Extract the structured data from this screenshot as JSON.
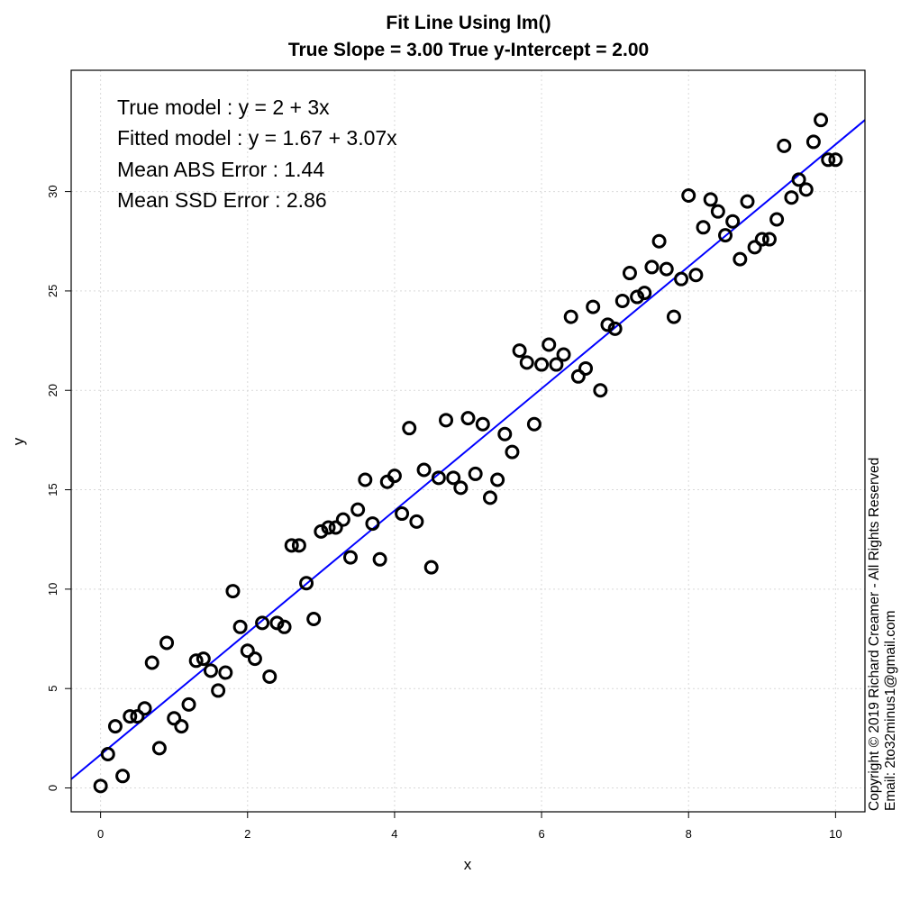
{
  "chart_data": {
    "type": "scatter",
    "title": "Fit Line Using lm()",
    "subtitle": "True Slope = 3.00 True y-Intercept = 2.00",
    "xlabel": "x",
    "ylabel": "y",
    "xlim": [
      -0.4,
      10.4
    ],
    "ylim": [
      -1.2,
      36.1
    ],
    "x_ticks": [
      0,
      2,
      4,
      6,
      8,
      10
    ],
    "y_ticks": [
      0,
      5,
      10,
      15,
      20,
      25,
      30
    ],
    "grid": true,
    "fit_line": {
      "intercept": 1.67,
      "slope": 3.07,
      "color": "#0000ff"
    },
    "annotations": [
      "True model : y = 2 + 3x",
      "Fitted model : y = 1.67 + 3.07x",
      "Mean ABS Error : 1.44",
      "Mean SSD Error : 2.86"
    ],
    "copyright": [
      "Copyright © 2019 Richard Creamer - All Rights Reserved",
      "Email: 2to32minus1@gmail.com"
    ],
    "x": [
      0.0,
      0.1,
      0.2,
      0.3,
      0.4,
      0.5,
      0.6,
      0.7,
      0.8,
      0.9,
      1.0,
      1.1,
      1.2,
      1.3,
      1.4,
      1.5,
      1.6,
      1.7,
      1.8,
      1.9,
      2.0,
      2.1,
      2.2,
      2.3,
      2.4,
      2.5,
      2.6,
      2.7,
      2.8,
      2.9,
      3.0,
      3.1,
      3.2,
      3.3,
      3.4,
      3.5,
      3.6,
      3.7,
      3.8,
      3.9,
      4.0,
      4.1,
      4.2,
      4.3,
      4.4,
      4.5,
      4.6,
      4.7,
      4.8,
      4.9,
      5.0,
      5.1,
      5.2,
      5.3,
      5.4,
      5.5,
      5.6,
      5.7,
      5.8,
      5.9,
      6.0,
      6.1,
      6.2,
      6.3,
      6.4,
      6.5,
      6.6,
      6.7,
      6.8,
      6.9,
      7.0,
      7.1,
      7.2,
      7.3,
      7.4,
      7.5,
      7.6,
      7.7,
      7.8,
      7.9,
      8.0,
      8.1,
      8.2,
      8.3,
      8.4,
      8.5,
      8.6,
      8.7,
      8.8,
      8.9,
      9.0,
      9.1,
      9.2,
      9.3,
      9.4,
      9.5,
      9.6,
      9.7,
      9.8,
      9.9,
      10.0
    ],
    "y": [
      0.1,
      1.7,
      3.1,
      0.6,
      3.6,
      3.6,
      4.0,
      6.3,
      2.0,
      7.3,
      3.5,
      3.1,
      4.2,
      6.4,
      6.5,
      5.9,
      4.9,
      5.8,
      9.9,
      8.1,
      6.9,
      6.5,
      8.3,
      5.6,
      8.3,
      8.1,
      12.2,
      12.2,
      10.3,
      8.5,
      12.9,
      13.1,
      13.1,
      13.5,
      11.6,
      14.0,
      15.5,
      13.3,
      11.5,
      15.4,
      15.7,
      13.8,
      18.1,
      13.4,
      16.0,
      11.1,
      15.6,
      18.5,
      15.6,
      15.1,
      18.6,
      15.8,
      18.3,
      14.6,
      15.5,
      17.8,
      16.9,
      22.0,
      21.4,
      18.3,
      21.3,
      22.3,
      21.3,
      21.8,
      23.7,
      20.7,
      21.1,
      24.2,
      20.0,
      23.3,
      23.1,
      24.5,
      25.9,
      24.7,
      24.9,
      26.2,
      27.5,
      26.1,
      23.7,
      25.6,
      29.8,
      25.8,
      28.2,
      29.6,
      29.0,
      27.8,
      28.5,
      26.6,
      29.5,
      27.2,
      27.6,
      27.6,
      28.6,
      32.3,
      29.7,
      30.6,
      30.1,
      32.5,
      33.6,
      31.6,
      31.6
    ]
  }
}
